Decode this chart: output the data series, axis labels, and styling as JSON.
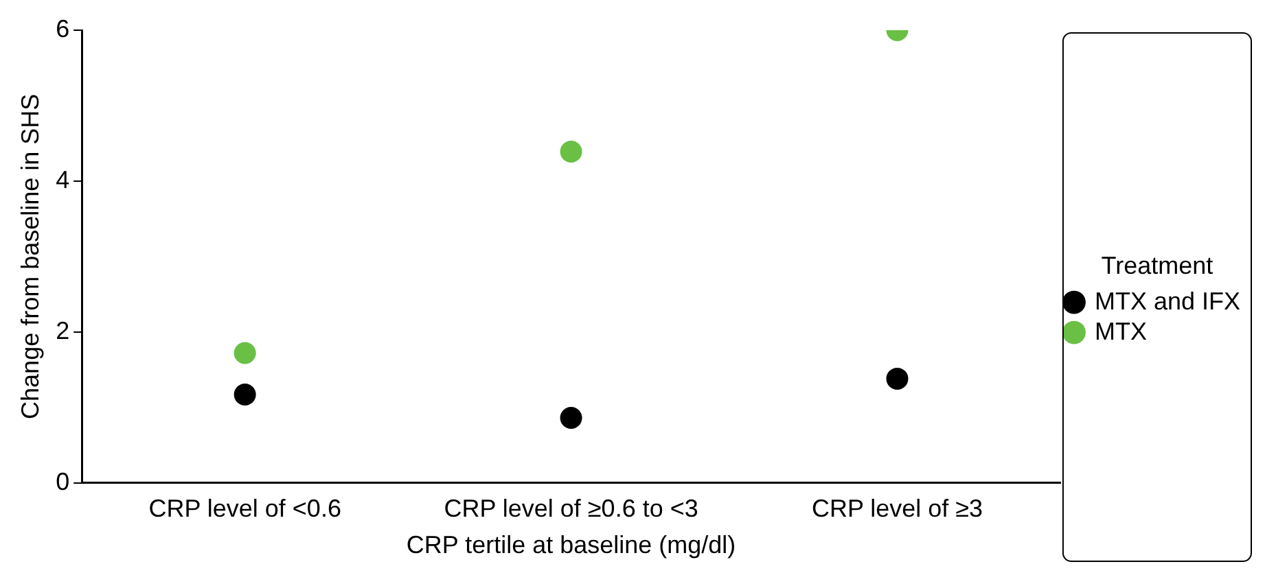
{
  "chart_data": {
    "type": "scatter",
    "xlabel": "CRP tertile at baseline (mg/dl)",
    "ylabel": "Change from baseline in SHS",
    "legend_title": "Treatment",
    "categories": [
      "CRP level of <0.6",
      "CRP level of ≥0.6 to <3",
      "CRP level of ≥3"
    ],
    "series": [
      {
        "name": "MTX and IFX",
        "color": "#000000",
        "values": [
          1.17,
          0.86,
          1.38
        ]
      },
      {
        "name": "MTX",
        "color": "#6abf45",
        "values": [
          1.72,
          4.39,
          6.0
        ]
      }
    ],
    "ylim": [
      0,
      6
    ],
    "yticks": [
      0,
      2,
      4,
      6
    ],
    "grid": false,
    "legend": "right",
    "marker": "circle"
  }
}
